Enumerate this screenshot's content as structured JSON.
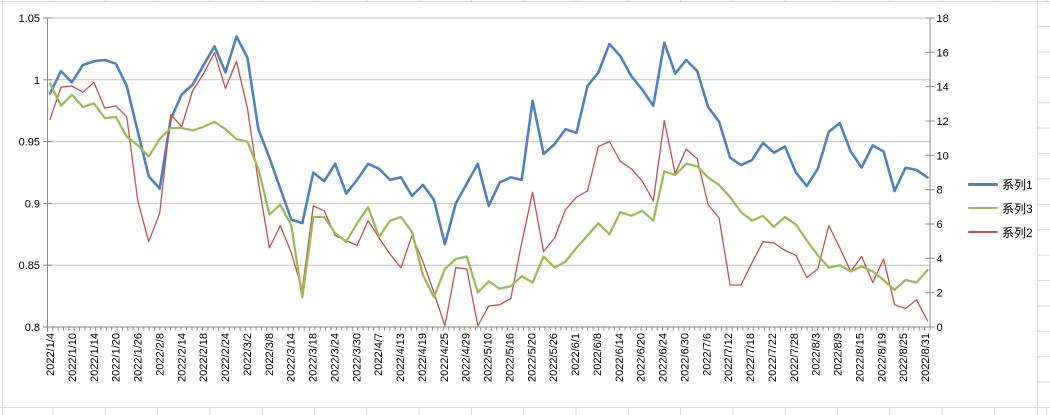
{
  "chart_data": {
    "type": "line",
    "title": "",
    "x_labels": [
      "2022/1/4",
      "2022/1/10",
      "2022/1/14",
      "2022/1/20",
      "2022/1/26",
      "2022/2/8",
      "2022/2/14",
      "2022/2/18",
      "2022/2/24",
      "2022/3/2",
      "2022/3/8",
      "2022/3/14",
      "2022/3/18",
      "2022/3/24",
      "2022/3/30",
      "2022/4/7",
      "2022/4/13",
      "2022/4/19",
      "2022/4/25",
      "2022/4/29",
      "2022/5/10",
      "2022/5/16",
      "2022/5/20",
      "2022/5/26",
      "2022/6/1",
      "2022/6/8",
      "2022/6/14",
      "2022/6/20",
      "2022/6/24",
      "2022/6/30",
      "2022/7/6",
      "2022/7/12",
      "2022/7/18",
      "2022/7/22",
      "2022/7/28",
      "2022/8/3",
      "2022/8/9",
      "2022/8/15",
      "2022/8/19",
      "2022/8/25",
      "2022/8/31"
    ],
    "points_per_label": 2,
    "left_axis": {
      "min": 0.8,
      "max": 1.05,
      "step": 0.05,
      "tick_labels": [
        "1.05",
        "1",
        "0.95",
        "0.9",
        "0.85",
        "0.8"
      ],
      "tick_values": [
        1.05,
        1.0,
        0.95,
        0.9,
        0.85,
        0.8
      ]
    },
    "right_axis": {
      "min": 0,
      "max": 18,
      "step": 2,
      "tick_labels": [
        "18",
        "16",
        "14",
        "12",
        "10",
        "8",
        "6",
        "4",
        "2",
        "0"
      ],
      "tick_values": [
        18,
        16,
        14,
        12,
        10,
        8,
        6,
        4,
        2,
        0
      ]
    },
    "grid": true,
    "gridline_color": "#c3c3c3",
    "axis_color": "#898989",
    "series": [
      {
        "name": "系列1",
        "color": "#4F81BD",
        "width": 2.6,
        "axis": "left",
        "values": [
          0.989,
          1.007,
          0.998,
          1.012,
          1.015,
          1.016,
          1.013,
          0.995,
          0.958,
          0.922,
          0.912,
          0.968,
          0.988,
          0.996,
          1.012,
          1.027,
          1.006,
          1.035,
          1.018,
          0.96,
          0.937,
          0.912,
          0.887,
          0.884,
          0.925,
          0.918,
          0.932,
          0.908,
          0.919,
          0.932,
          0.928,
          0.919,
          0.921,
          0.906,
          0.915,
          0.903,
          0.867,
          0.9,
          0.916,
          0.932,
          0.898,
          0.917,
          0.921,
          0.919,
          0.983,
          0.94,
          0.948,
          0.96,
          0.957,
          0.995,
          1.006,
          1.029,
          1.019,
          1.003,
          0.992,
          0.979,
          1.03,
          1.005,
          1.016,
          1.007,
          0.978,
          0.966,
          0.937,
          0.931,
          0.935,
          0.949,
          0.941,
          0.946,
          0.925,
          0.914,
          0.928,
          0.958,
          0.965,
          0.942,
          0.929,
          0.947,
          0.942,
          0.91,
          0.929,
          0.927,
          0.921
        ]
      },
      {
        "name": "系列2",
        "color": "#C0504D",
        "width": 1.3,
        "axis": "left",
        "values": [
          0.968,
          0.994,
          0.995,
          0.99,
          0.998,
          0.977,
          0.979,
          0.97,
          0.902,
          0.869,
          0.892,
          0.972,
          0.962,
          0.991,
          1.005,
          1.022,
          0.993,
          1.015,
          0.977,
          0.917,
          0.864,
          0.882,
          0.86,
          0.83,
          0.898,
          0.894,
          0.874,
          0.87,
          0.866,
          0.886,
          0.872,
          0.859,
          0.848,
          0.874,
          0.853,
          0.828,
          0.801,
          0.848,
          0.847,
          0.801,
          0.817,
          0.818,
          0.823,
          0.868,
          0.909,
          0.861,
          0.872,
          0.895,
          0.905,
          0.91,
          0.946,
          0.95,
          0.934,
          0.928,
          0.918,
          0.902,
          0.967,
          0.924,
          0.944,
          0.936,
          0.899,
          0.888,
          0.834,
          0.834,
          0.852,
          0.869,
          0.868,
          0.862,
          0.858,
          0.84,
          0.847,
          0.882,
          0.864,
          0.845,
          0.857,
          0.836,
          0.855,
          0.818,
          0.815,
          0.822,
          0.805
        ]
      },
      {
        "name": "系列3",
        "color": "#9BBB59",
        "width": 2.3,
        "axis": "left",
        "values": [
          0.997,
          0.979,
          0.988,
          0.978,
          0.981,
          0.969,
          0.97,
          0.954,
          0.947,
          0.938,
          0.952,
          0.961,
          0.961,
          0.959,
          0.962,
          0.966,
          0.96,
          0.952,
          0.95,
          0.928,
          0.891,
          0.899,
          0.882,
          0.824,
          0.889,
          0.889,
          0.876,
          0.869,
          0.884,
          0.897,
          0.873,
          0.886,
          0.889,
          0.877,
          0.842,
          0.824,
          0.847,
          0.855,
          0.857,
          0.828,
          0.837,
          0.831,
          0.833,
          0.841,
          0.836,
          0.857,
          0.848,
          0.853,
          0.864,
          0.874,
          0.884,
          0.875,
          0.893,
          0.89,
          0.894,
          0.886,
          0.926,
          0.923,
          0.932,
          0.93,
          0.921,
          0.915,
          0.905,
          0.893,
          0.886,
          0.89,
          0.881,
          0.889,
          0.883,
          0.87,
          0.858,
          0.848,
          0.85,
          0.845,
          0.849,
          0.845,
          0.838,
          0.83,
          0.838,
          0.836,
          0.846
        ]
      }
    ],
    "legend": {
      "position": "right",
      "items": [
        {
          "label": "系列1",
          "color": "#4F81BD",
          "thickness": 3
        },
        {
          "label": "系列3",
          "color": "#9BBB59",
          "thickness": 2.5
        },
        {
          "label": "系列2",
          "color": "#C0504D",
          "thickness": 1.5
        }
      ]
    }
  }
}
